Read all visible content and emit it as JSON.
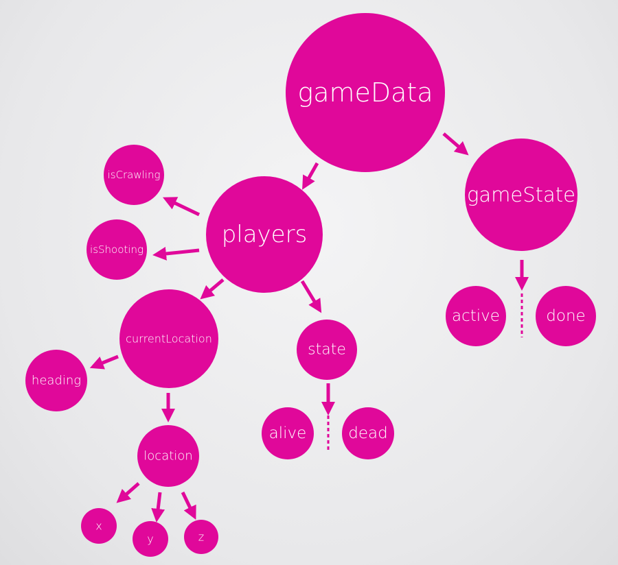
{
  "accent_color": "#e0089a",
  "nodes": {
    "gameData": "gameData",
    "gameState": "gameState",
    "players": "players",
    "isCrawling": "isCrawling",
    "isShooting": "isShooting",
    "currentLocation": "currentLocation",
    "state": "state",
    "heading": "heading",
    "location": "location",
    "alive": "alive",
    "dead": "dead",
    "active": "active",
    "done": "done",
    "x": "x",
    "y": "y",
    "z": "z"
  },
  "edges": [
    [
      "gameData",
      "players"
    ],
    [
      "gameData",
      "gameState"
    ],
    [
      "players",
      "isCrawling"
    ],
    [
      "players",
      "isShooting"
    ],
    [
      "players",
      "currentLocation"
    ],
    [
      "players",
      "state"
    ],
    [
      "currentLocation",
      "heading"
    ],
    [
      "currentLocation",
      "location"
    ],
    [
      "state",
      "alive|dead"
    ],
    [
      "gameState",
      "active|done"
    ],
    [
      "location",
      "x"
    ],
    [
      "location",
      "y"
    ],
    [
      "location",
      "z"
    ]
  ]
}
